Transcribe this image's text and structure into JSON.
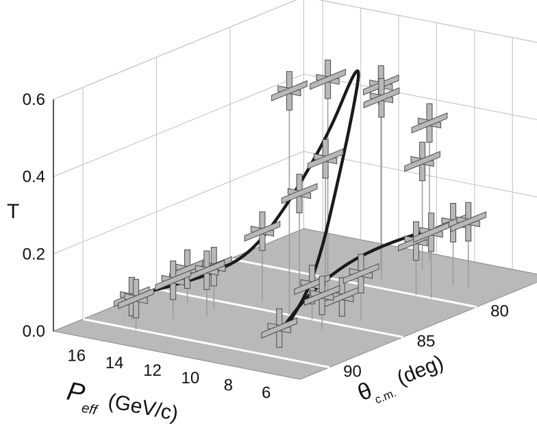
{
  "chart_data": {
    "type": "scatter",
    "title": "",
    "zlabel": "T",
    "xlabel": {
      "main": "P",
      "sub": "eff",
      "unit": "(GeV/c)"
    },
    "ylabel": {
      "main": "θ",
      "sub": "c.m.",
      "unit": "(deg)"
    },
    "zlim": [
      0.0,
      0.6
    ],
    "z_ticks": [
      "0.0",
      "0.2",
      "0.4",
      "0.6"
    ],
    "x_ticks": [
      "16",
      "14",
      "12",
      "10",
      "8",
      "6"
    ],
    "y_ticks": [
      "80",
      "85",
      "90"
    ],
    "grid": true,
    "series": [
      {
        "points": [
          {
            "p": 15.2,
            "theta": 89,
            "t": 0.06
          },
          {
            "p": 14.6,
            "theta": 86,
            "t": 0.09
          },
          {
            "p": 14.2,
            "theta": 90,
            "t": 0.08
          },
          {
            "p": 13.8,
            "theta": 88,
            "t": 0.1
          },
          {
            "p": 13.2,
            "theta": 86,
            "t": 0.11
          },
          {
            "p": 12.8,
            "theta": 87,
            "t": 0.12
          },
          {
            "p": 12.2,
            "theta": 84,
            "t": 0.18
          },
          {
            "p": 11.8,
            "theta": 82,
            "t": 0.25
          },
          {
            "p": 11.2,
            "theta": 81,
            "t": 0.33
          },
          {
            "p": 10.6,
            "theta": 78,
            "t": 0.48
          },
          {
            "p": 10.3,
            "theta": 82,
            "t": 0.56
          },
          {
            "p": 10.0,
            "theta": 85,
            "t": 0.58
          },
          {
            "p": 9.8,
            "theta": 79,
            "t": 0.47
          },
          {
            "p": 9.6,
            "theta": 76,
            "t": 0.36
          },
          {
            "p": 9.2,
            "theta": 77,
            "t": 0.28
          },
          {
            "p": 8.8,
            "theta": 85,
            "t": 0.09
          },
          {
            "p": 8.2,
            "theta": 88,
            "t": 0.03
          },
          {
            "p": 8.0,
            "theta": 84,
            "t": 0.05
          },
          {
            "p": 7.5,
            "theta": 86,
            "t": 0.09
          },
          {
            "p": 7.2,
            "theta": 80,
            "t": 0.14
          },
          {
            "p": 7.0,
            "theta": 84,
            "t": 0.12
          },
          {
            "p": 6.8,
            "theta": 78,
            "t": 0.16
          },
          {
            "p": 6.4,
            "theta": 80,
            "t": 0.17
          },
          {
            "p": 6.0,
            "theta": 78,
            "t": 0.17
          }
        ]
      }
    ],
    "fit_curve": {
      "p": [
        15.0,
        14.0,
        13.0,
        12.0,
        11.5,
        11.0,
        10.6,
        10.2,
        9.9,
        9.5,
        9.0,
        8.6,
        8.2,
        7.8,
        7.4,
        7.0,
        6.4
      ],
      "theta": [
        88.0,
        87.5,
        86.5,
        85.0,
        83.0,
        81.0,
        80.0,
        80.0,
        80.5,
        82.0,
        84.5,
        87.0,
        88.0,
        86.5,
        84.5,
        82.5,
        80.5
      ],
      "t": [
        0.06,
        0.08,
        0.1,
        0.14,
        0.25,
        0.4,
        0.53,
        0.56,
        0.52,
        0.36,
        0.1,
        0.01,
        0.02,
        0.1,
        0.15,
        0.17,
        0.18
      ]
    }
  }
}
